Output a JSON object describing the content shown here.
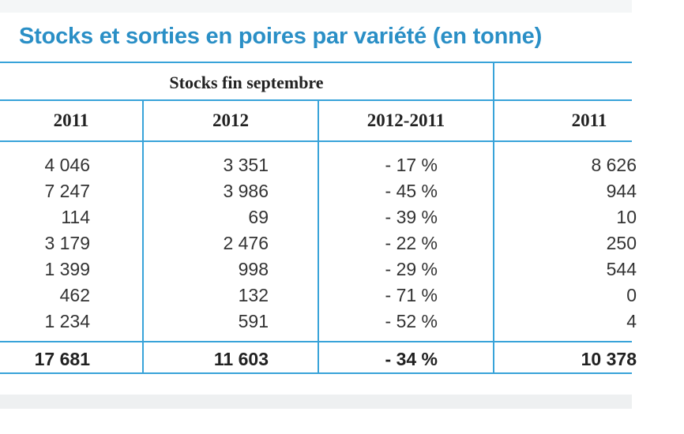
{
  "title": "Stocks et sorties en poires par variété (en tonne)",
  "group_header": "Stocks fin septembre",
  "columns": [
    "2011",
    "2012",
    "2012-2011",
    "2011"
  ],
  "rows": [
    [
      "4 046",
      "3 351",
      "- 17 %",
      "8 626"
    ],
    [
      "7 247",
      "3 986",
      "- 45 %",
      "944"
    ],
    [
      "114",
      "69",
      "- 39 %",
      "10"
    ],
    [
      "3 179",
      "2 476",
      "- 22 %",
      "250"
    ],
    [
      "1 399",
      "998",
      "- 29 %",
      "544"
    ],
    [
      "462",
      "132",
      "- 71 %",
      "0"
    ],
    [
      "1 234",
      "591",
      "- 52 %",
      "4"
    ]
  ],
  "total": [
    "17 681",
    "11 603",
    "- 34 %",
    "10 378"
  ]
}
